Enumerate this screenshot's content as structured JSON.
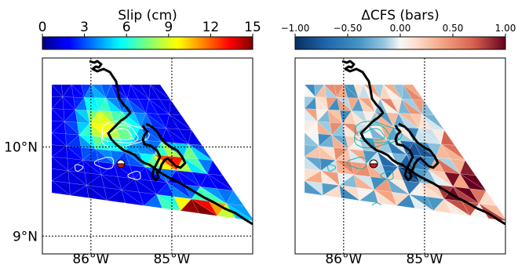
{
  "colors": {
    "frame": "#000000",
    "coast": "#000000",
    "slip_contour": "#ffffff",
    "cfs_contour": "#20b2aa",
    "epicenter_top": "#ffffff",
    "epicenter_bottom": "#d7191c"
  },
  "panels": [
    {
      "id": "slip",
      "colorbar": {
        "title": "Slip (cm)",
        "colormap": "jet",
        "range": [
          0,
          15
        ],
        "ticks": [
          "0",
          "3",
          "6",
          "9",
          "12",
          "15"
        ]
      },
      "map": {
        "lon_range": [
          -86.6,
          -84.0
        ],
        "lat_range": [
          8.8,
          11.0
        ],
        "y_ticks": [
          "10°N",
          "9°N"
        ],
        "x_ticks": [],
        "gridlines": {
          "lon": [
            -86,
            -85
          ],
          "lat": [
            10,
            9
          ]
        }
      }
    },
    {
      "id": "cfs",
      "colorbar": {
        "title": "ΔCFS (bars)",
        "colormap": "RdBu_r",
        "range": [
          -1,
          1
        ],
        "ticks": [
          "−1.00",
          "−0.50",
          "0.00",
          "0.50",
          "1.00"
        ]
      },
      "map": {
        "lon_range": [
          -86.6,
          -84.0
        ],
        "lat_range": [
          8.8,
          11.0
        ],
        "y_ticks": [],
        "x_ticks": [
          "86°W",
          "85°W"
        ],
        "gridlines": {
          "lon": [
            -86,
            -85,
            -84
          ]
        }
      }
    }
  ],
  "left_x_ticks": [
    "86°W",
    "85°W"
  ]
}
